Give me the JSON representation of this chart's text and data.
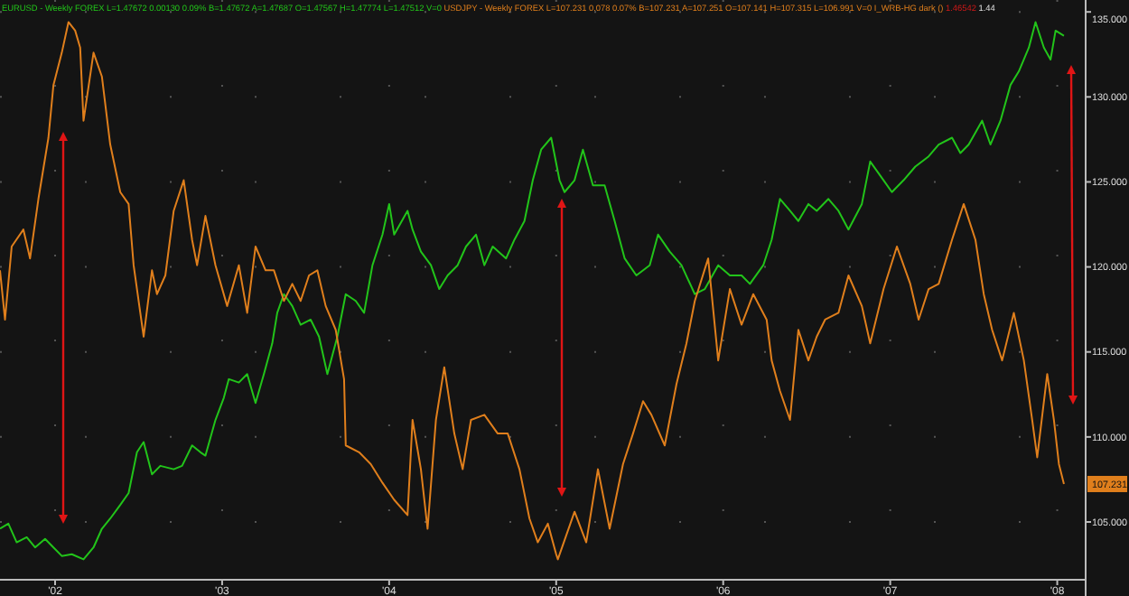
{
  "chart_data": {
    "type": "line",
    "xlim": [
      2001.67,
      2008.17
    ],
    "ylim": [
      101.6,
      135.7
    ],
    "xticks": [
      {
        "value": 2002,
        "label": "'02"
      },
      {
        "value": 2003,
        "label": "'03"
      },
      {
        "value": 2004,
        "label": "'04"
      },
      {
        "value": 2005,
        "label": "'05"
      },
      {
        "value": 2006,
        "label": "'06"
      },
      {
        "value": 2007,
        "label": "'07"
      },
      {
        "value": 2008,
        "label": "'08"
      }
    ],
    "yticks": [
      {
        "value": 105,
        "label": "105.000"
      },
      {
        "value": 110,
        "label": "110.000"
      },
      {
        "value": 115,
        "label": "115.000"
      },
      {
        "value": 120,
        "label": "120.000"
      },
      {
        "value": 125,
        "label": "125.000"
      },
      {
        "value": 130,
        "label": "130.000"
      },
      {
        "value": 135,
        "label": "135.000"
      }
    ],
    "grid": true,
    "marker": "none",
    "line_style": "solid",
    "series": [
      {
        "name": "EURUSD",
        "color": "#22c41a",
        "x": [
          2001.67,
          2001.72,
          2001.77,
          2001.83,
          2001.88,
          2001.94,
          2001.99,
          2002.04,
          2002.1,
          2002.17,
          2002.23,
          2002.28,
          2002.33,
          2002.39,
          2002.44,
          2002.49,
          2002.53,
          2002.58,
          2002.63,
          2002.71,
          2002.76,
          2002.82,
          2002.87,
          2002.9,
          2002.96,
          2003.01,
          2003.04,
          2003.1,
          2003.15,
          2003.2,
          2003.25,
          2003.3,
          2003.33,
          2003.37,
          2003.42,
          2003.47,
          2003.53,
          2003.58,
          2003.63,
          2003.69,
          2003.74,
          2003.8,
          2003.85,
          2003.9,
          2003.96,
          2004.0,
          2004.03,
          2004.11,
          2004.14,
          2004.19,
          2004.25,
          2004.3,
          2004.35,
          2004.41,
          2004.46,
          2004.52,
          2004.57,
          2004.62,
          2004.7,
          2004.75,
          2004.81,
          2004.86,
          2004.91,
          2004.97,
          2005.02,
          2005.05,
          2005.11,
          2005.16,
          2005.22,
          2005.29,
          2005.35,
          2005.41,
          2005.48,
          2005.56,
          2005.61,
          2005.68,
          2005.75,
          2005.83,
          2005.89,
          2005.97,
          2006.04,
          2006.11,
          2006.16,
          2006.24,
          2006.29,
          2006.34,
          2006.4,
          2006.45,
          2006.51,
          2006.56,
          2006.63,
          2006.69,
          2006.75,
          2006.83,
          2006.88,
          2006.96,
          2007.01,
          2007.08,
          2007.15,
          2007.23,
          2007.29,
          2007.37,
          2007.42,
          2007.47,
          2007.55,
          2007.6,
          2007.66,
          2007.72,
          2007.77,
          2007.83,
          2007.87,
          2007.92,
          2007.96,
          2007.99,
          2008.04
        ],
        "values": [
          104.6,
          104.9,
          103.8,
          104.1,
          103.5,
          104.0,
          103.5,
          103.0,
          103.1,
          102.8,
          103.5,
          104.6,
          105.2,
          106.0,
          106.7,
          109.1,
          109.7,
          107.8,
          108.3,
          108.1,
          108.3,
          109.5,
          109.1,
          108.9,
          111.0,
          112.3,
          113.4,
          113.2,
          113.7,
          112.0,
          113.7,
          115.5,
          117.3,
          118.4,
          117.7,
          116.6,
          116.9,
          115.9,
          113.7,
          115.9,
          118.4,
          118.0,
          117.3,
          120.1,
          121.9,
          123.7,
          121.9,
          123.3,
          122.2,
          120.9,
          120.1,
          118.7,
          119.5,
          120.1,
          121.2,
          121.9,
          120.1,
          121.2,
          120.5,
          121.6,
          122.7,
          125.1,
          126.9,
          127.6,
          125.1,
          124.4,
          125.1,
          126.9,
          124.8,
          124.8,
          122.7,
          120.5,
          119.5,
          120.1,
          121.9,
          120.9,
          120.1,
          118.4,
          118.7,
          120.1,
          119.5,
          119.5,
          119.0,
          120.1,
          121.6,
          124.0,
          123.3,
          122.7,
          123.7,
          123.3,
          124.0,
          123.3,
          122.2,
          123.7,
          126.2,
          125.1,
          124.4,
          125.1,
          125.9,
          126.5,
          127.2,
          127.6,
          126.7,
          127.2,
          128.6,
          127.2,
          128.6,
          130.7,
          131.5,
          132.9,
          134.4,
          132.9,
          132.2,
          133.9,
          133.6
        ]
      },
      {
        "name": "USDJPY",
        "color": "#e07f1c",
        "x": [
          2001.67,
          2001.7,
          2001.74,
          2001.81,
          2001.85,
          2001.9,
          2001.96,
          2001.99,
          2002.04,
          2002.08,
          2002.12,
          2002.15,
          2002.17,
          2002.23,
          2002.28,
          2002.33,
          2002.39,
          2002.44,
          2002.47,
          2002.53,
          2002.58,
          2002.61,
          2002.66,
          2002.71,
          2002.77,
          2002.82,
          2002.85,
          2002.9,
          2002.96,
          2003.03,
          2003.1,
          2003.15,
          2003.2,
          2003.26,
          2003.31,
          2003.37,
          2003.42,
          2003.47,
          2003.52,
          2003.57,
          2003.62,
          2003.68,
          2003.73,
          2003.74,
          2003.82,
          2003.89,
          2003.96,
          2004.03,
          2004.11,
          2004.14,
          2004.19,
          2004.23,
          2004.28,
          2004.33,
          2004.39,
          2004.44,
          2004.49,
          2004.57,
          2004.65,
          2004.71,
          2004.78,
          2004.84,
          2004.89,
          2004.95,
          2005.0,
          2005.01,
          2005.11,
          2005.18,
          2005.25,
          2005.32,
          2005.4,
          2005.46,
          2005.52,
          2005.57,
          2005.65,
          2005.72,
          2005.78,
          2005.83,
          2005.91,
          2005.97,
          2006.04,
          2006.11,
          2006.18,
          2006.26,
          2006.29,
          2006.34,
          2006.4,
          2006.45,
          2006.51,
          2006.56,
          2006.61,
          2006.69,
          2006.75,
          2006.83,
          2006.88,
          2006.96,
          2007.04,
          2007.12,
          2007.17,
          2007.23,
          2007.29,
          2007.37,
          2007.44,
          2007.51,
          2007.56,
          2007.61,
          2007.67,
          2007.74,
          2007.8,
          2007.85,
          2007.88,
          2007.94,
          2007.98,
          2008.01,
          2008.04
        ],
        "values": [
          119.8,
          116.9,
          121.2,
          122.2,
          120.5,
          124.0,
          127.6,
          130.7,
          132.6,
          134.4,
          133.9,
          132.9,
          128.6,
          132.6,
          131.2,
          127.2,
          124.4,
          123.7,
          120.1,
          115.9,
          119.8,
          118.4,
          119.5,
          123.3,
          125.1,
          121.6,
          120.1,
          123.0,
          120.1,
          117.7,
          120.1,
          117.3,
          121.2,
          119.8,
          119.8,
          118.0,
          119.0,
          118.0,
          119.5,
          119.8,
          117.7,
          116.3,
          113.4,
          109.5,
          109.1,
          108.4,
          107.3,
          106.3,
          105.4,
          111.0,
          108.1,
          104.6,
          111.0,
          114.1,
          110.2,
          108.1,
          111.0,
          111.3,
          110.2,
          110.2,
          108.1,
          105.2,
          103.8,
          104.9,
          103.1,
          102.8,
          105.6,
          103.8,
          108.1,
          104.6,
          108.4,
          110.2,
          112.1,
          111.3,
          109.5,
          113.1,
          115.5,
          118.0,
          120.5,
          114.5,
          118.7,
          116.6,
          118.4,
          116.9,
          114.5,
          112.7,
          111.0,
          116.3,
          114.5,
          115.9,
          116.9,
          117.3,
          119.5,
          117.7,
          115.5,
          118.7,
          121.2,
          119.0,
          116.9,
          118.7,
          119.0,
          121.6,
          123.7,
          121.6,
          118.4,
          116.3,
          114.5,
          117.3,
          114.5,
          111.0,
          108.8,
          113.7,
          111.0,
          108.4,
          107.231
        ]
      }
    ],
    "annotations": [
      "- Weekly FOREX L=1.47672 0.00130 0.09% B=1.47672 A=1.47687 O=1.47567 H=1.47774 L=1.47512 V=0",
      "- Weekly FOREX L=107.231 0.078 0.07% B=107.231 A=107.251 O=107.141 H=107.315 L=106.991 V=0 I_WRB-HG dark ()",
      "1.46542",
      "1.44",
      {
        "text": "107.231",
        "y": 107.231
      }
    ]
  }
}
